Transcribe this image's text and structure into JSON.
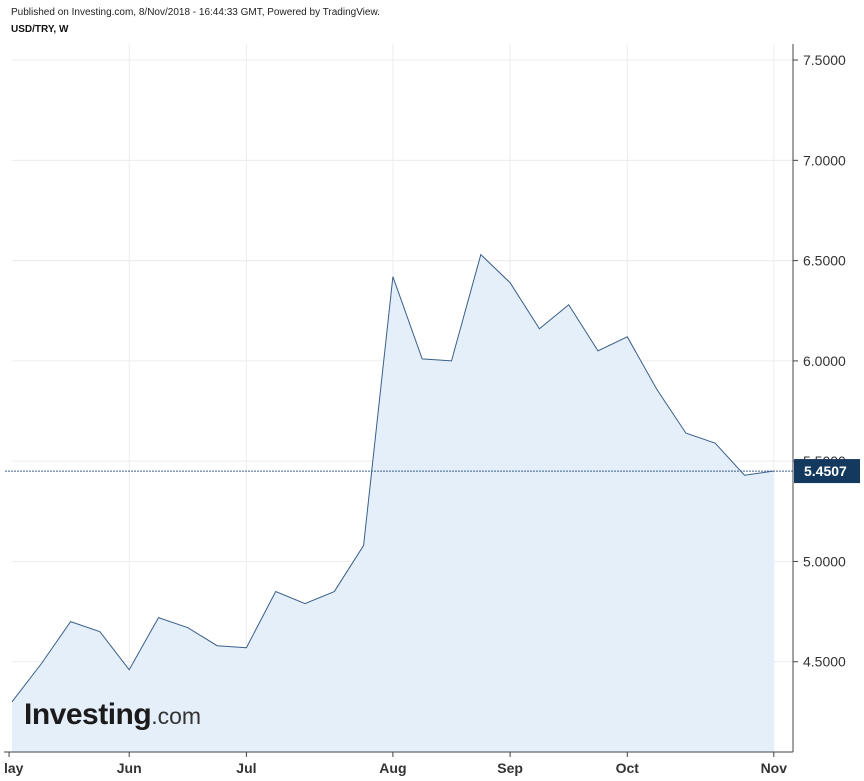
{
  "header": {
    "published": "Published on Investing.com, 8/Nov/2018 - 16:44:33 GMT, Powered by TradingView.",
    "symbol": "USD/TRY, W"
  },
  "logo": {
    "brand": "Investing",
    "suffix": ".com"
  },
  "colors": {
    "line": "#3a5f8a",
    "fill": "#e4effa",
    "grid": "#ececec",
    "axis": "#444444",
    "label_bg": "#14395f",
    "label_text": "#ffffff"
  },
  "chart_data": {
    "type": "area",
    "title": "",
    "xlabel": "",
    "ylabel": "",
    "week_index": [
      0,
      1,
      2,
      3,
      4,
      5,
      6,
      7,
      8,
      9,
      10,
      11,
      12,
      13,
      14,
      15,
      16,
      17,
      18,
      19,
      20,
      21,
      22,
      23,
      24,
      25,
      26
    ],
    "values": [
      4.3,
      4.49,
      4.7,
      4.65,
      4.46,
      4.72,
      4.67,
      4.58,
      4.57,
      4.85,
      4.79,
      4.85,
      5.08,
      6.42,
      6.01,
      6.0,
      6.53,
      6.39,
      6.16,
      6.28,
      6.05,
      6.12,
      5.86,
      5.64,
      5.59,
      5.43,
      5.4507
    ],
    "x_ticks": [
      {
        "label": "lay",
        "week": -0.1
      },
      {
        "label": "Jun",
        "week": 4
      },
      {
        "label": "Jul",
        "week": 8
      },
      {
        "label": "Aug",
        "week": 13
      },
      {
        "label": "Sep",
        "week": 17
      },
      {
        "label": "Oct",
        "week": 21
      },
      {
        "label": "Nov",
        "week": 26
      }
    ],
    "y_ticks": [
      "4.5000",
      "5.0000",
      "5.5000",
      "6.0000",
      "6.5000",
      "7.0000",
      "7.5000"
    ],
    "ylim": [
      4.05,
      7.58
    ],
    "last_value": 5.4507,
    "last_label": "5.4507",
    "grid": true
  }
}
